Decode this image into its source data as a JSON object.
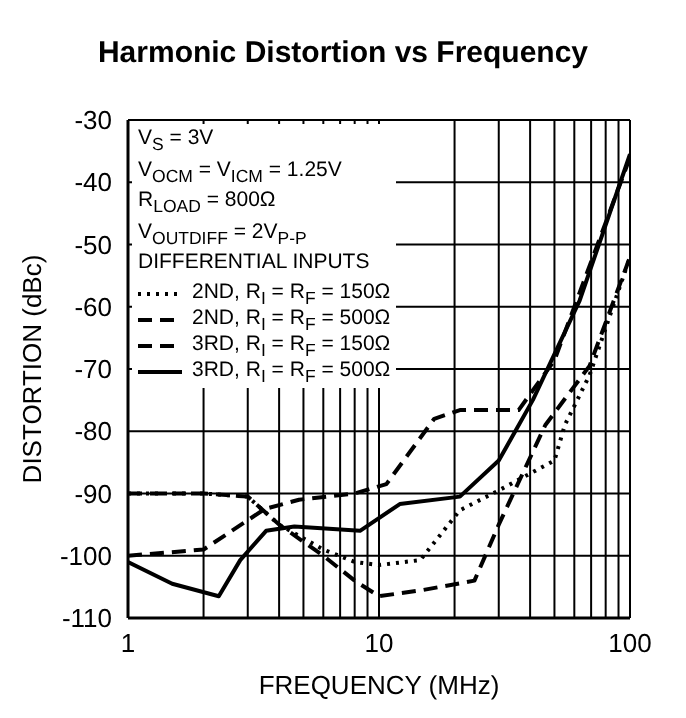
{
  "chart_data": {
    "type": "line",
    "title": "Harmonic Distortion vs Frequency",
    "xlabel": "FREQUENCY (MHz)",
    "ylabel": "DISTORTION (dBc)",
    "log": "x",
    "grid": true,
    "legend": "top left",
    "marker": "none",
    "xlim": [
      1,
      100
    ],
    "xticks": [
      1,
      {
        "value": 2,
        "label": null
      },
      {
        "value": 3,
        "label": null
      },
      {
        "value": 4,
        "label": null
      },
      {
        "value": 5,
        "label": null
      },
      {
        "value": 6,
        "label": null
      },
      {
        "value": 7,
        "label": null
      },
      {
        "value": 8,
        "label": null
      },
      {
        "value": 9,
        "label": null
      },
      10,
      {
        "value": 20,
        "label": null
      },
      {
        "value": 30,
        "label": null
      },
      {
        "value": 40,
        "label": null
      },
      {
        "value": 50,
        "label": null
      },
      {
        "value": 60,
        "label": null
      },
      {
        "value": 70,
        "label": null
      },
      {
        "value": 80,
        "label": null
      },
      {
        "value": 90,
        "label": null
      },
      100
    ],
    "ylim": [
      -110,
      -30
    ],
    "yticks": [
      -110,
      -100,
      -90,
      -80,
      -70,
      -60,
      -50,
      -40,
      -30
    ],
    "annotations": [
      "V$_{S}$ = 3V",
      "V$_{OCM}$ = V$_{ICM}$ = 1.25V",
      "R$_{LOAD}$ = 800Ω",
      "V$_{OUTDIFF}$ = 2V$_{P-P}$",
      "DIFFERENTIAL INPUTS"
    ],
    "series": [
      {
        "name": "2ND, R$_{I}$ = R$_{F}$ = 150Ω",
        "color": "#000000",
        "line_style": "dotted",
        "x": [
          1,
          2,
          3,
          4,
          6,
          8,
          10,
          14.6,
          21,
          30,
          50,
          55,
          69,
          100
        ],
        "values": [
          -90,
          -90,
          -90.5,
          -95,
          -99,
          -101,
          -101.5,
          -100.7,
          -92.7,
          -89.5,
          -84.7,
          -79,
          -71,
          -52
        ]
      },
      {
        "name": "2ND, R$_{I}$ = R$_{F}$ = 500Ω",
        "color": "#000000",
        "line_style": "dashed",
        "x": [
          1,
          2,
          3,
          4,
          6,
          8,
          10,
          15,
          24,
          30,
          46,
          69,
          100
        ],
        "values": [
          -90,
          -90,
          -90.5,
          -95,
          -100,
          -104,
          -106.5,
          -105.5,
          -104,
          -95,
          -79,
          -69.5,
          -52
        ]
      },
      {
        "name": "3RD, R$_{I}$ = R$_{F}$ = 150Ω",
        "color": "#000000",
        "line_style": "dashed",
        "x": [
          1,
          2,
          3.5,
          4.8,
          8,
          10.7,
          16.6,
          21,
          36,
          50,
          100
        ],
        "values": [
          -100,
          -99,
          -92.5,
          -91,
          -90,
          -88.5,
          -78,
          -76.6,
          -76.6,
          -68.6,
          -36
        ]
      },
      {
        "name": "3RD, R$_{I}$ = R$_{F}$ = 500Ω",
        "color": "#000000",
        "line_style": "solid",
        "x": [
          1,
          1.5,
          2.3,
          2.8,
          3.55,
          4.6,
          8.4,
          12.1,
          21,
          30,
          41,
          63,
          100
        ],
        "values": [
          -101,
          -104.5,
          -106.5,
          -100.7,
          -96,
          -95.3,
          -96,
          -91.7,
          -90.5,
          -84.7,
          -75,
          -59,
          -35.5
        ]
      }
    ]
  }
}
